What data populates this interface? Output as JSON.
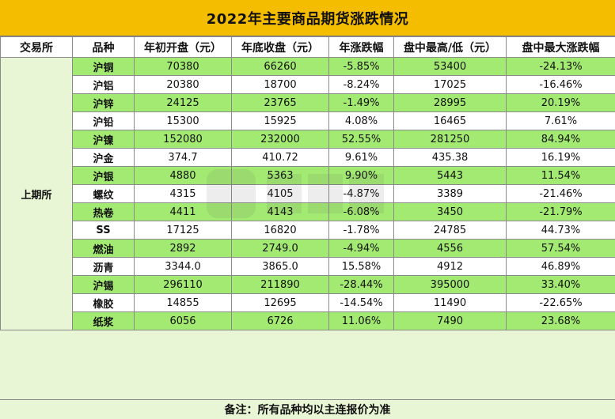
{
  "title": "2022年主要商品期货涨跌情况",
  "headers": [
    "交易所",
    "品种",
    "年初开盘（元）",
    "年底收盘（元）",
    "年涨跌幅",
    "盘中最高/低（元）",
    "盘中最大涨跌幅"
  ],
  "exchange": "上期所",
  "rows": [
    {
      "name": "沪铜",
      "open": "70380",
      "close": "66260",
      "change": "-5.85%",
      "extreme": "53400",
      "max_change": "-24.13%"
    },
    {
      "name": "沪铝",
      "open": "20380",
      "close": "18700",
      "change": "-8.24%",
      "extreme": "17025",
      "max_change": "-16.46%"
    },
    {
      "name": "沪锌",
      "open": "24125",
      "close": "23765",
      "change": "-1.49%",
      "extreme": "28995",
      "max_change": "20.19%"
    },
    {
      "name": "沪铅",
      "open": "15300",
      "close": "15925",
      "change": "4.08%",
      "extreme": "16465",
      "max_change": "7.61%"
    },
    {
      "name": "沪镍",
      "open": "152080",
      "close": "232000",
      "change": "52.55%",
      "extreme": "281250",
      "max_change": "84.94%"
    },
    {
      "name": "沪金",
      "open": "374.7",
      "close": "410.72",
      "change": "9.61%",
      "extreme": "435.38",
      "max_change": "16.19%"
    },
    {
      "name": "沪银",
      "open": "4880",
      "close": "5363",
      "change": "9.90%",
      "extreme": "5443",
      "max_change": "11.54%"
    },
    {
      "name": "螺纹",
      "open": "4315",
      "close": "4105",
      "change": "-4.87%",
      "extreme": "3389",
      "max_change": "-21.46%"
    },
    {
      "name": "热卷",
      "open": "4411",
      "close": "4143",
      "change": "-6.08%",
      "extreme": "3450",
      "max_change": "-21.79%"
    },
    {
      "name": "SS",
      "open": "17125",
      "close": "16820",
      "change": "-1.78%",
      "extreme": "24785",
      "max_change": "44.73%"
    },
    {
      "name": "燃油",
      "open": "2892",
      "close": "2749.0",
      "change": "-4.94%",
      "extreme": "4556",
      "max_change": "57.54%"
    },
    {
      "name": "沥青",
      "open": "3344.0",
      "close": "3865.0",
      "change": "15.58%",
      "extreme": "4912",
      "max_change": "46.89%"
    },
    {
      "name": "沪锡",
      "open": "296110",
      "close": "211890",
      "change": "-28.44%",
      "extreme": "395000",
      "max_change": "33.40%"
    },
    {
      "name": "橡胶",
      "open": "14855",
      "close": "12695",
      "change": "-14.54%",
      "extreme": "11490",
      "max_change": "-22.65%"
    },
    {
      "name": "纸浆",
      "open": "6056",
      "close": "6726",
      "change": "11.06%",
      "extreme": "7490",
      "max_change": "23.68%"
    }
  ],
  "footer_note": "备注：所有品种均以主连报价为准",
  "colors": {
    "title_bg": "#f5bd00",
    "row_green": "#a3ea73",
    "sheet_bg": "#e8f6d6"
  }
}
